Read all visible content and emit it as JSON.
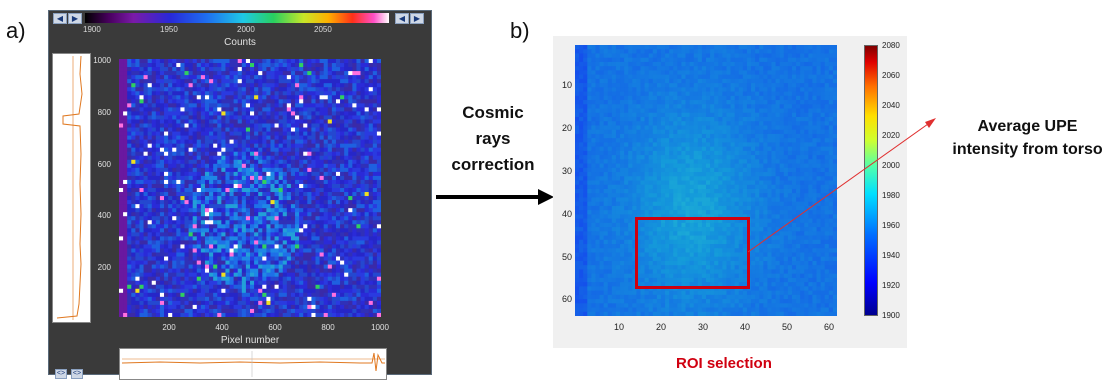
{
  "panel_a": {
    "label": "a)",
    "colorbar": {
      "ticks": [
        "1900",
        "1950",
        "2000",
        "2050"
      ],
      "label": "Counts",
      "left_buttons": [
        "◀",
        "▶"
      ],
      "right_buttons": [
        "◀",
        "▶"
      ]
    },
    "y_ticks": [
      "1000",
      "800",
      "600",
      "400",
      "200"
    ],
    "x_ticks": [
      "200",
      "400",
      "600",
      "800",
      "1000"
    ],
    "x_label": "Pixel number",
    "bottom_buttons": [
      "<>",
      "<>"
    ]
  },
  "arrow_text": {
    "line1": "Cosmic",
    "line2": "rays",
    "line3": "correction"
  },
  "panel_b": {
    "label": "b)",
    "y_ticks": [
      "10",
      "20",
      "30",
      "40",
      "50",
      "60"
    ],
    "x_ticks": [
      "10",
      "20",
      "30",
      "40",
      "50",
      "60"
    ],
    "colorbar_ticks": [
      "2080",
      "2060",
      "2040",
      "2020",
      "2000",
      "1980",
      "1960",
      "1940",
      "1920",
      "1900"
    ],
    "roi_label": "ROI selection",
    "avg_line1": "Average UPE",
    "avg_line2": "intensity from torso"
  },
  "colors": {
    "roi_red": "#d00010",
    "window_bg": "#3a3a3a",
    "profile_line": "#e07820"
  }
}
